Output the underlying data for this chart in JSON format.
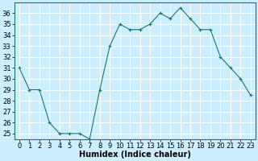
{
  "x": [
    0,
    1,
    2,
    3,
    4,
    5,
    6,
    7,
    8,
    9,
    10,
    11,
    12,
    13,
    14,
    15,
    16,
    17,
    18,
    19,
    20,
    21,
    22,
    23
  ],
  "y": [
    31,
    29,
    29,
    26,
    25,
    25,
    25,
    24.5,
    29,
    33,
    35,
    34.5,
    34.5,
    35,
    36,
    35.5,
    36.5,
    35.5,
    34.5,
    34.5,
    32,
    31,
    30,
    28.5
  ],
  "line_color": "#1a7a6a",
  "marker": "+",
  "marker_size": 3,
  "marker_lw": 0.8,
  "bg_color": "#cceeff",
  "grid_color": "#ffffff",
  "xlabel": "Humidex (Indice chaleur)",
  "xlabel_fontsize": 7,
  "tick_fontsize": 6,
  "ylim": [
    24.5,
    37
  ],
  "xlim": [
    -0.5,
    23.5
  ],
  "yticks": [
    25,
    26,
    27,
    28,
    29,
    30,
    31,
    32,
    33,
    34,
    35,
    36
  ],
  "xticks": [
    0,
    1,
    2,
    3,
    4,
    5,
    6,
    7,
    8,
    9,
    10,
    11,
    12,
    13,
    14,
    15,
    16,
    17,
    18,
    19,
    20,
    21,
    22,
    23
  ],
  "line_width": 0.8
}
